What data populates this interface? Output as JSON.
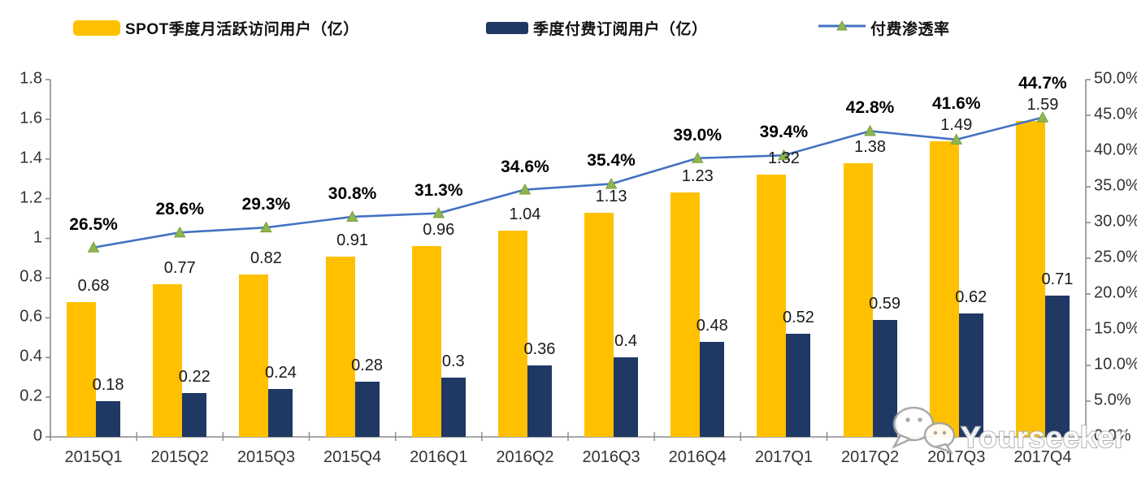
{
  "watermark": {
    "text": "Yourseeker"
  },
  "colors": {
    "mau_bar": "#FFC000",
    "subs_bar": "#1F3864",
    "line": "#4472C4",
    "marker_fill": "#8FB551",
    "marker_edge": "#74A13E",
    "axis": "#8C8C8C",
    "tick_label": "#333333",
    "value_label": "#1A1A1A",
    "percent_label": "#000000"
  },
  "chart_data": {
    "type": "bar",
    "subtype": "grouped-bars-with-line-combo",
    "title": "",
    "legend_position": "top",
    "grid": false,
    "categories": [
      "2015Q1",
      "2015Q2",
      "2015Q3",
      "2015Q4",
      "2016Q1",
      "2016Q2",
      "2016Q3",
      "2016Q4",
      "2017Q1",
      "2017Q2",
      "2017Q3",
      "2017Q4"
    ],
    "series": [
      {
        "name": "SPOT季度月活跃访问用户（亿）",
        "type": "bar",
        "axis": "left",
        "values": [
          0.68,
          0.77,
          0.82,
          0.91,
          0.96,
          1.04,
          1.13,
          1.23,
          1.32,
          1.38,
          1.49,
          1.59
        ],
        "labels": [
          "0.68",
          "0.77",
          "0.82",
          "0.91",
          "0.96",
          "1.04",
          "1.13",
          "1.23",
          "1.32",
          "1.38",
          "1.49",
          "1.59"
        ]
      },
      {
        "name": "季度付费订阅用户（亿）",
        "type": "bar",
        "axis": "left",
        "values": [
          0.18,
          0.22,
          0.24,
          0.28,
          0.3,
          0.36,
          0.4,
          0.48,
          0.52,
          0.59,
          0.62,
          0.71
        ],
        "labels": [
          "0.18",
          "0.22",
          "0.24",
          "0.28",
          "0.3",
          "0.36",
          "0.4",
          "0.48",
          "0.52",
          "0.59",
          "0.62",
          "0.71"
        ]
      },
      {
        "name": "付费渗透率",
        "type": "line",
        "axis": "right",
        "values": [
          26.5,
          28.6,
          29.3,
          30.8,
          31.3,
          34.6,
          35.4,
          39.0,
          39.4,
          42.8,
          41.6,
          44.7
        ],
        "labels": [
          "26.5%",
          "28.6%",
          "29.3%",
          "30.8%",
          "31.3%",
          "34.6%",
          "35.4%",
          "39.0%",
          "39.4%",
          "42.8%",
          "41.6%",
          "44.7%"
        ]
      }
    ],
    "y_axis_left": {
      "labels": [
        "0",
        "0.2",
        "0.4",
        "0.6",
        "0.8",
        "1",
        "1.2",
        "1.4",
        "1.6",
        "1.8"
      ],
      "values": [
        0,
        0.2,
        0.4,
        0.6,
        0.8,
        1,
        1.2,
        1.4,
        1.6,
        1.8
      ],
      "range": [
        0,
        1.8
      ]
    },
    "y_axis_right": {
      "labels": [
        "0.0%",
        "5.0%",
        "10.0%",
        "15.0%",
        "20.0%",
        "25.0%",
        "30.0%",
        "35.0%",
        "40.0%",
        "45.0%",
        "50.0%"
      ],
      "values": [
        0,
        5,
        10,
        15,
        20,
        25,
        30,
        35,
        40,
        45,
        50
      ],
      "range": [
        0,
        50
      ]
    }
  }
}
